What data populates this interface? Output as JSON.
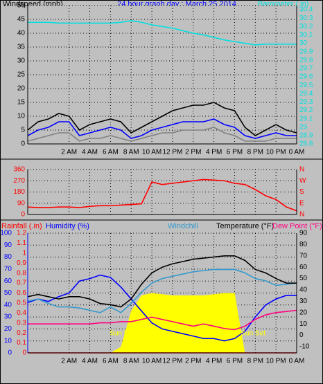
{
  "chart_data": [
    {
      "type": "line",
      "title": "24 hour graph day : March 25 2014",
      "y_label": "Windspeed (mph)",
      "y2_label": "Barometer (.in)",
      "x": [
        -2,
        -1,
        0,
        1,
        2,
        3,
        4,
        5,
        6,
        7,
        8,
        9,
        10,
        11,
        12,
        13,
        14,
        15,
        16,
        17,
        18,
        19,
        20,
        21,
        22,
        23,
        24
      ],
      "xlim": [
        -2,
        24
      ],
      "xticks": [
        {
          "value": 2,
          "label": "2 AM"
        },
        {
          "value": 4,
          "label": "4 AM"
        },
        {
          "value": 6,
          "label": "6 AM"
        },
        {
          "value": 8,
          "label": "8 AM"
        },
        {
          "value": 10,
          "label": "10 AM"
        },
        {
          "value": 12,
          "label": "12 PM"
        },
        {
          "value": 14,
          "label": "2 PM"
        },
        {
          "value": 16,
          "label": "4 PM"
        },
        {
          "value": 18,
          "label": "6 PM"
        },
        {
          "value": 20,
          "label": "8 PM"
        },
        {
          "value": 22,
          "label": "10 PM"
        },
        {
          "value": 24,
          "label": "0 AM"
        }
      ],
      "ylim": [
        0,
        50
      ],
      "yticks": [
        0,
        5,
        10,
        15,
        20,
        25,
        30,
        35,
        40,
        45,
        50
      ],
      "y2lim": [
        28.8,
        30.45
      ],
      "y2ticks": [
        28.8,
        28.9,
        29,
        29.1,
        29.2,
        29.3,
        29.4,
        29.5,
        29.6,
        29.7,
        29.8,
        29.9,
        30,
        30.1,
        30.2,
        30.3,
        30.4
      ],
      "ytick_color": "#000000",
      "y2tick_color": "#00e0e0",
      "grid": true,
      "series": [
        {
          "color": "#000000",
          "values": [
            5,
            8,
            9,
            11,
            10,
            5,
            7,
            8,
            9,
            8,
            4,
            6,
            8,
            10,
            12,
            13,
            14,
            14,
            15,
            13,
            12,
            6,
            3,
            5,
            7,
            5,
            4
          ]
        },
        {
          "color": "#0000ff",
          "values": [
            3,
            5,
            6,
            8,
            8,
            3,
            4,
            5,
            6,
            5,
            2,
            3,
            5,
            6,
            7,
            8,
            8,
            8,
            9,
            7,
            6,
            3,
            2,
            3,
            4,
            3,
            3
          ]
        },
        {
          "color": "#808080",
          "values": [
            1,
            2,
            3,
            4,
            4,
            1,
            2,
            2,
            3,
            2,
            1,
            2,
            3,
            4,
            4,
            5,
            5,
            5,
            6,
            4,
            3,
            1,
            1,
            1,
            2,
            2,
            2
          ]
        },
        {
          "color": "#00e0e0",
          "axis": "y2",
          "values": [
            30.25,
            30.25,
            30.25,
            30.24,
            30.24,
            30.24,
            30.24,
            30.24,
            30.24,
            30.25,
            30.27,
            30.25,
            30.22,
            30.2,
            30.18,
            30.15,
            30.12,
            30.1,
            30.07,
            30.04,
            30.02,
            30,
            29.98,
            29.99,
            29.99,
            29.99,
            29.99
          ]
        }
      ]
    },
    {
      "type": "line",
      "x": [
        -2,
        -1,
        0,
        1,
        2,
        3,
        4,
        5,
        6,
        7,
        8,
        9,
        10,
        11,
        12,
        13,
        14,
        15,
        16,
        17,
        18,
        19,
        20,
        21,
        22,
        23,
        24
      ],
      "xlim": [
        -2,
        24
      ],
      "ylim": [
        0,
        360
      ],
      "yticks": [
        0,
        90,
        180,
        270,
        360
      ],
      "y2lim": [
        0,
        360
      ],
      "y2ticks": [
        {
          "value": 0,
          "label": "N"
        },
        {
          "value": 90,
          "label": "E"
        },
        {
          "value": 180,
          "label": "S"
        },
        {
          "value": 270,
          "label": "W"
        },
        {
          "value": 360,
          "label": "N"
        }
      ],
      "ytick_color": "#ff0000",
      "y2tick_color": "#ff0000",
      "grid": true,
      "series": [
        {
          "color": "#ff0000",
          "values": [
            60,
            55,
            55,
            60,
            60,
            55,
            65,
            70,
            70,
            75,
            80,
            85,
            260,
            240,
            250,
            260,
            270,
            280,
            275,
            270,
            250,
            240,
            200,
            150,
            120,
            60,
            30
          ]
        }
      ]
    },
    {
      "type": "line",
      "x": [
        -2,
        -1,
        0,
        1,
        2,
        3,
        4,
        5,
        6,
        7,
        8,
        9,
        10,
        11,
        12,
        13,
        14,
        15,
        16,
        17,
        18,
        19,
        20,
        21,
        22,
        23,
        24
      ],
      "xlim": [
        -2,
        24
      ],
      "xticks": [
        {
          "value": 2,
          "label": "2 AM"
        },
        {
          "value": 4,
          "label": "4 AM"
        },
        {
          "value": 6,
          "label": "6 AM"
        },
        {
          "value": 8,
          "label": "8 AM"
        },
        {
          "value": 10,
          "label": "10 AM"
        },
        {
          "value": 12,
          "label": "12 PM"
        },
        {
          "value": 14,
          "label": "2 PM"
        },
        {
          "value": 16,
          "label": "4 PM"
        },
        {
          "value": 18,
          "label": "6 PM"
        },
        {
          "value": 20,
          "label": "8 PM"
        },
        {
          "value": 22,
          "label": "10 PM"
        },
        {
          "value": 24,
          "label": "0 AM"
        }
      ],
      "ylim": [
        0,
        100
      ],
      "yticks": [
        0,
        10,
        20,
        30,
        40,
        50,
        60,
        70,
        80,
        90,
        100
      ],
      "y2lim": [
        -15.5,
        90
      ],
      "y2ticks": [
        -10,
        0,
        10,
        20,
        30,
        40,
        50,
        60,
        70,
        80,
        90
      ],
      "y3lim": [
        0,
        1.2
      ],
      "y3ticks": [
        0,
        0.1,
        0.2,
        0.3,
        0.4,
        0.5,
        0.6,
        0.7,
        0.8,
        0.9,
        1,
        1.1,
        1.2
      ],
      "ytick_color": "#0000ff",
      "y2tick_color": "#000000",
      "y3tick_color": "#ff0000",
      "grid": true,
      "annotations": [
        "Sun Rise",
        "Sun Set"
      ],
      "series": [
        {
          "color": "#ffff00",
          "fill": true,
          "values": [
            0,
            0,
            0,
            0,
            0,
            0,
            0,
            0,
            0,
            5,
            35,
            48,
            50,
            49,
            48,
            48,
            48,
            48,
            49,
            50,
            50,
            0,
            0,
            0,
            0,
            0,
            0
          ]
        },
        {
          "name": "Rainfall (.in)",
          "color": "#ff0000",
          "axis": "y3",
          "values": [
            0,
            0,
            0,
            0,
            0,
            0,
            0,
            0,
            0,
            0,
            0,
            0,
            0,
            0,
            0,
            0,
            0,
            0,
            0,
            0,
            0,
            0,
            0,
            0,
            0,
            0,
            0
          ]
        },
        {
          "name": "Humidity (%)",
          "color": "#0000ff",
          "values": [
            42,
            45,
            43,
            47,
            50,
            60,
            62,
            65,
            63,
            55,
            45,
            35,
            25,
            20,
            18,
            16,
            14,
            12,
            12,
            10,
            12,
            18,
            30,
            40,
            45,
            48,
            48
          ]
        },
        {
          "name": "Windchill",
          "color": "#3399cc",
          "axis": "y2",
          "values": [
            30,
            32,
            28,
            25,
            25,
            24,
            22,
            20,
            25,
            20,
            28,
            38,
            46,
            50,
            52,
            54,
            56,
            57,
            58,
            58,
            58,
            55,
            50,
            48,
            44,
            45,
            46
          ]
        },
        {
          "name": "Temperature (°F)",
          "color": "#000000",
          "axis": "y2",
          "values": [
            34,
            36,
            34,
            32,
            34,
            34,
            32,
            28,
            27,
            25,
            32,
            45,
            55,
            60,
            63,
            65,
            67,
            68,
            69,
            70,
            70,
            66,
            58,
            55,
            50,
            46,
            46
          ]
        },
        {
          "name": "Dew Point (°F)",
          "color": "#ff0080",
          "axis": "y2",
          "values": [
            10,
            10,
            10,
            10,
            10,
            10,
            10,
            11,
            11,
            12,
            12,
            14,
            16,
            14,
            12,
            10,
            8,
            10,
            8,
            6,
            5,
            8,
            14,
            18,
            20,
            21,
            22
          ]
        }
      ]
    }
  ]
}
